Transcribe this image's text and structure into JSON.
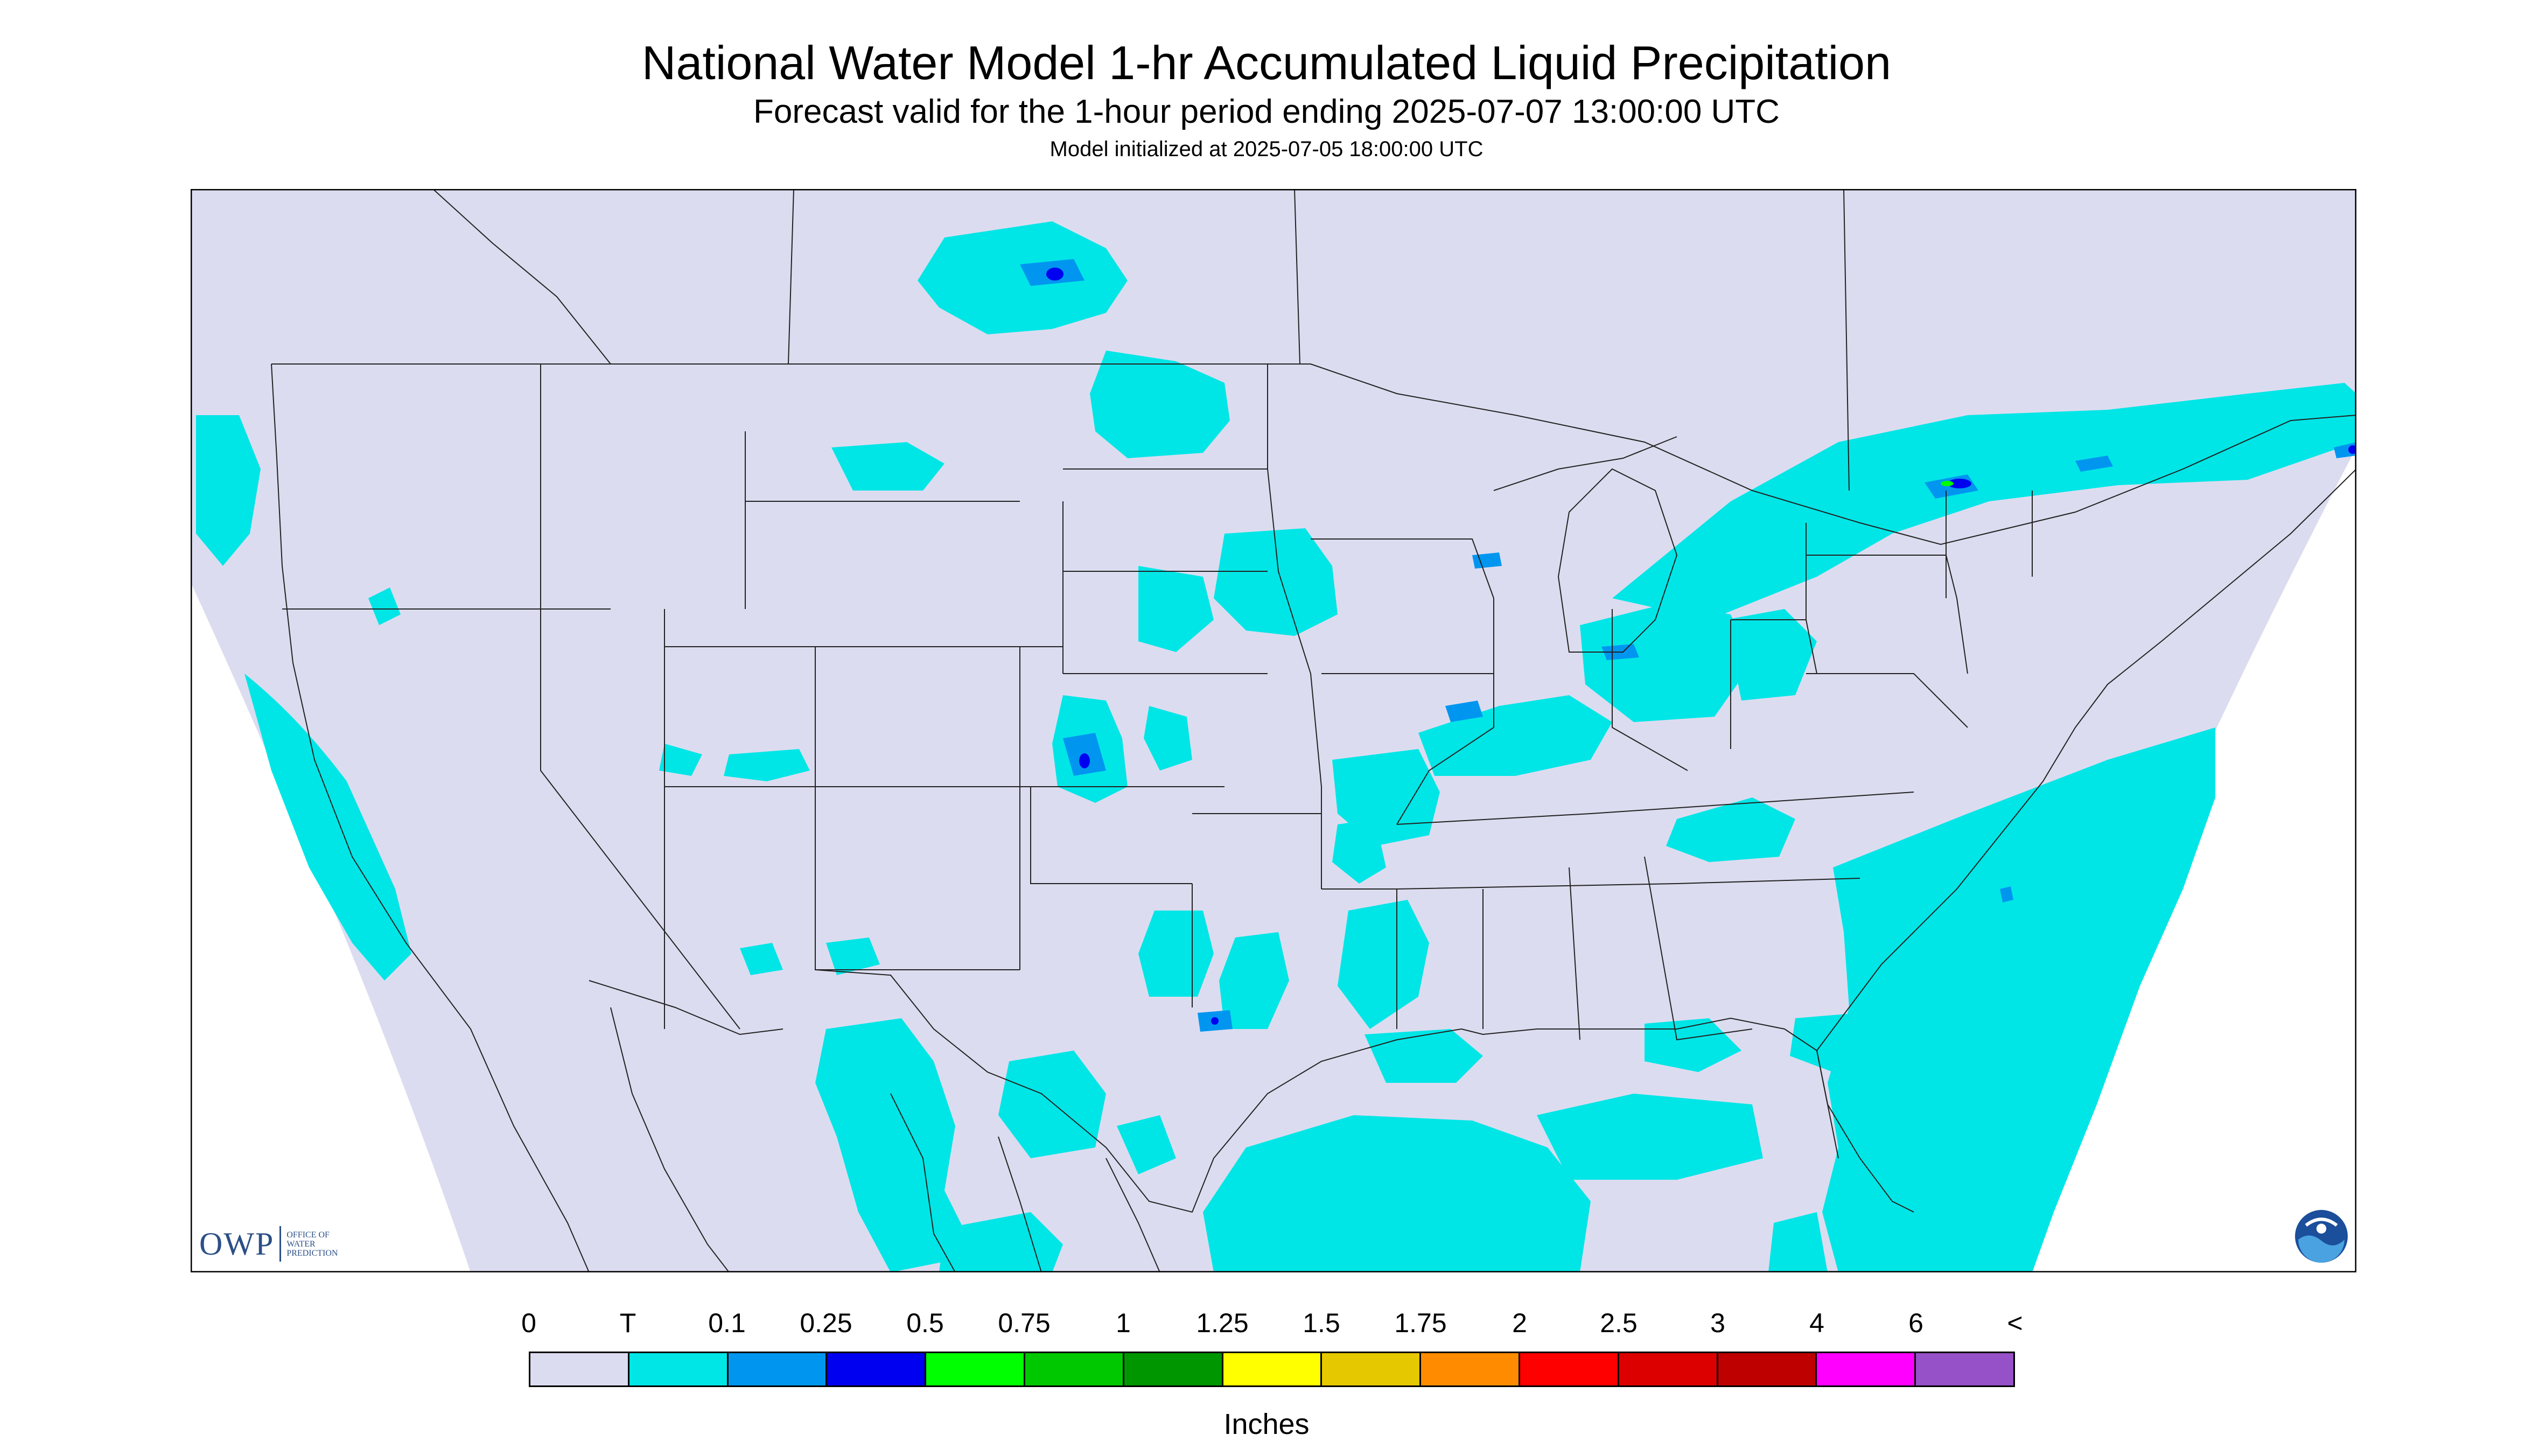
{
  "header": {
    "title": "National Water Model 1-hr Accumulated Liquid Precipitation",
    "subtitle": "Forecast valid for the 1-hour period ending 2025-07-07 13:00:00 UTC",
    "init": "Model initialized at 2025-07-05 18:00:00 UTC"
  },
  "logos": {
    "owp_mark": "OWP",
    "owp_line1": "OFFICE OF",
    "owp_line2": "WATER",
    "owp_line3": "PREDICTION",
    "noaa_icon": "noaa-logo-icon"
  },
  "legend": {
    "units": "Inches",
    "tick_labels": [
      "0",
      "T",
      "0.1",
      "0.25",
      "0.5",
      "0.75",
      "1",
      "1.25",
      "1.5",
      "1.75",
      "2",
      "2.5",
      "3",
      "4",
      "6",
      "<"
    ],
    "colors": [
      "#dcdcf0",
      "#00e6e6",
      "#0096f0",
      "#0000f0",
      "#00ff00",
      "#00c800",
      "#009600",
      "#ffff00",
      "#e6c800",
      "#ff8c00",
      "#ff0000",
      "#dc0000",
      "#be0000",
      "#ff00ff",
      "#9650c8"
    ]
  },
  "map": {
    "background_color": "#dcdcf0",
    "outside_color": "#ffffff",
    "precip_trace_color": "#00e6e6",
    "precip_light_color": "#0096f0",
    "precip_heavy_color": "#0000f0",
    "precip_peak_color": "#00ff00",
    "boundary_color": "#222222"
  }
}
